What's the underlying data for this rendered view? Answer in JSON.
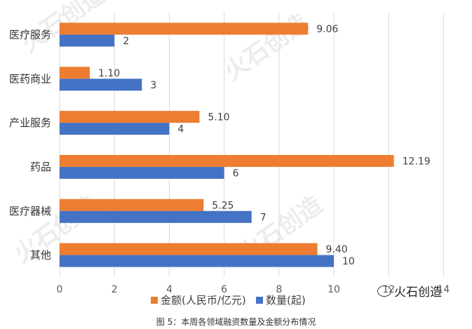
{
  "chart_data": {
    "type": "bar",
    "orientation": "horizontal",
    "categories": [
      "医疗服务",
      "医药商业",
      "产业服务",
      "药品",
      "医疗器械",
      "其他"
    ],
    "series": [
      {
        "name": "金额(人民币/亿元)",
        "values": [
          9.06,
          1.1,
          5.1,
          12.19,
          5.25,
          9.4
        ],
        "labels": [
          "9.06",
          "1.10",
          "5.10",
          "12.19",
          "5.25",
          "9.40"
        ],
        "color": "#ED7D31"
      },
      {
        "name": "数量(起)",
        "values": [
          2,
          3,
          4,
          6,
          7,
          10
        ],
        "labels": [
          "2",
          "3",
          "4",
          "6",
          "7",
          "10"
        ],
        "color": "#4472C4"
      }
    ],
    "xlim": [
      0,
      14
    ],
    "xticks": [
      "0",
      "2",
      "4",
      "6",
      "8",
      "10",
      "12",
      "14"
    ],
    "grid": true,
    "legend_position": "bottom"
  },
  "caption": "图 5：本周各领域融资数量及金额分布情况",
  "watermark": "火石创造",
  "wechat_mark": "火石创造",
  "wechat_icon": "wechat-icon"
}
